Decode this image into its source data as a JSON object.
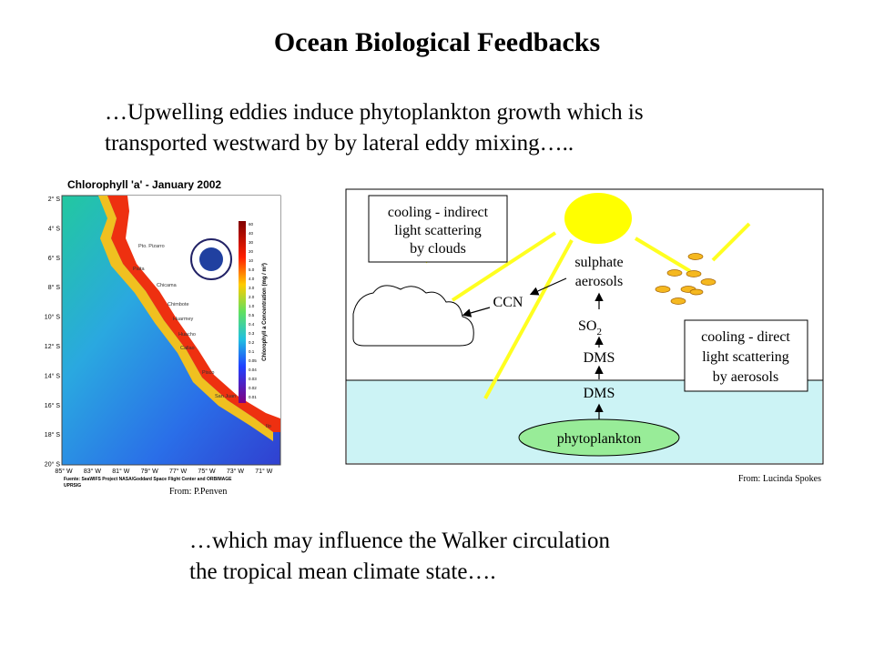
{
  "title": "Ocean Biological Feedbacks",
  "intro": [
    "…Upwelling eddies induce phytoplankton growth which is",
    "transported westward by by lateral eddy mixing….."
  ],
  "map": {
    "title": "Chlorophyll 'a' - January 2002",
    "lat_labels": [
      "2° S",
      "4° S",
      "6° S",
      "8° S",
      "10° S",
      "12° S",
      "14° S",
      "16° S",
      "18° S",
      "20° S"
    ],
    "lon_labels": [
      "85° W",
      "83° W",
      "81° W",
      "79° W",
      "77° W",
      "75° W",
      "73° W",
      "71° W"
    ],
    "places": [
      "Pto. Pizarro",
      "Paita",
      "Chicama",
      "Chimbote",
      "Huarmey",
      "Huacho",
      "Callao",
      "Pisco",
      "San Juan",
      "Ilo"
    ],
    "colorbar_title": "Chlorophyll a Concentration (mg / m³)",
    "colorbar_ticks": [
      "60",
      "40",
      "30",
      "20",
      "10",
      "5.0",
      "4.0",
      "3.0",
      "2.0",
      "1.0",
      "0.5",
      "0.4",
      "0.3",
      "0.2",
      "0.1",
      "0.05",
      "0.04",
      "0.03",
      "0.02",
      "0.01"
    ],
    "source": [
      "Fuente: SeaWIFS Project NASA/Goddard Space Flight Center and ORBIMAGE",
      "UPRSIG"
    ],
    "credit": "From: P.Penven"
  },
  "diagram": {
    "indirect_box": [
      "cooling - indirect",
      "light scattering",
      "by clouds"
    ],
    "sulphate": [
      "sulphate",
      "aerosols"
    ],
    "ccn": "CCN",
    "so2": {
      "main": "SO",
      "sub": "2"
    },
    "dms_air": "DMS",
    "dms_sea": "DMS",
    "phytoplankton": "phytoplankton",
    "direct_box": [
      "cooling - direct",
      "light scattering",
      "by aerosols"
    ],
    "credit": "From: Lucinda Spokes"
  },
  "closing": [
    "…which may influence the Walker circulation",
    "the tropical mean climate state…."
  ]
}
